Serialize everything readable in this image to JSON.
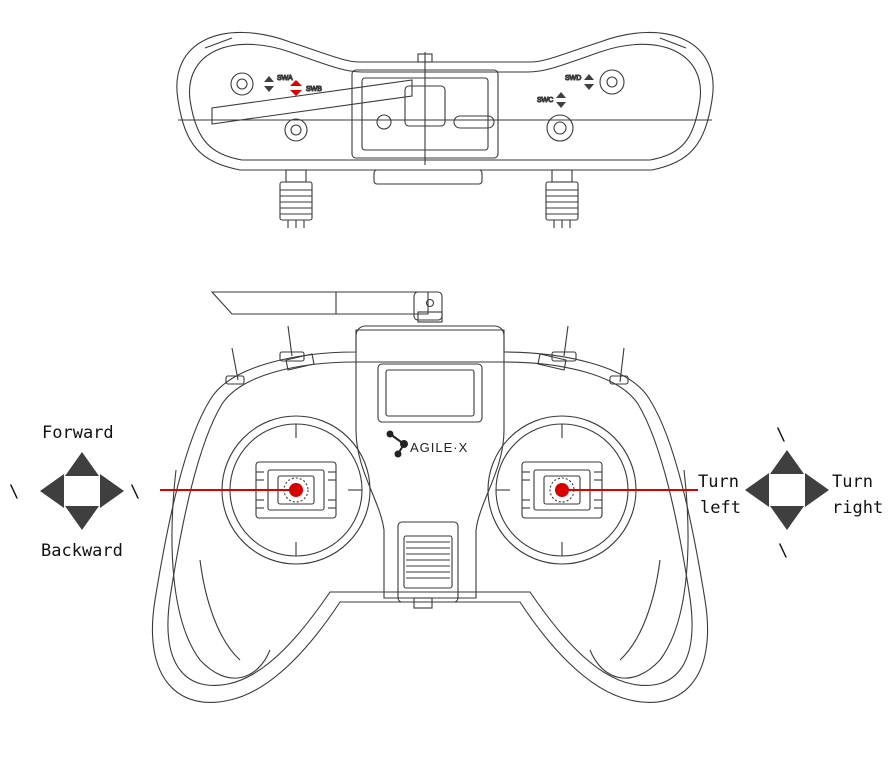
{
  "top_view": {
    "switch_labels": {
      "swa": "SWA",
      "swb": "SWB",
      "swc": "SWC",
      "swd": "SWD"
    }
  },
  "front_view": {
    "brand": "AGILE·X"
  },
  "left_stick": {
    "up_label": "Forward",
    "down_label": "Backward",
    "left_mark": "\\",
    "right_mark": "\\"
  },
  "right_stick": {
    "left_label_line1": "Turn",
    "left_label_line2": "left",
    "right_label_line1": "Turn",
    "right_label_line2": "right",
    "top_mark": "\\",
    "bottom_mark": "\\"
  },
  "colors": {
    "outline": "#3a3a3a",
    "arrow": "#3f3f3f",
    "indicator_red": "#d90000",
    "highlight_switch": "#e00000"
  }
}
